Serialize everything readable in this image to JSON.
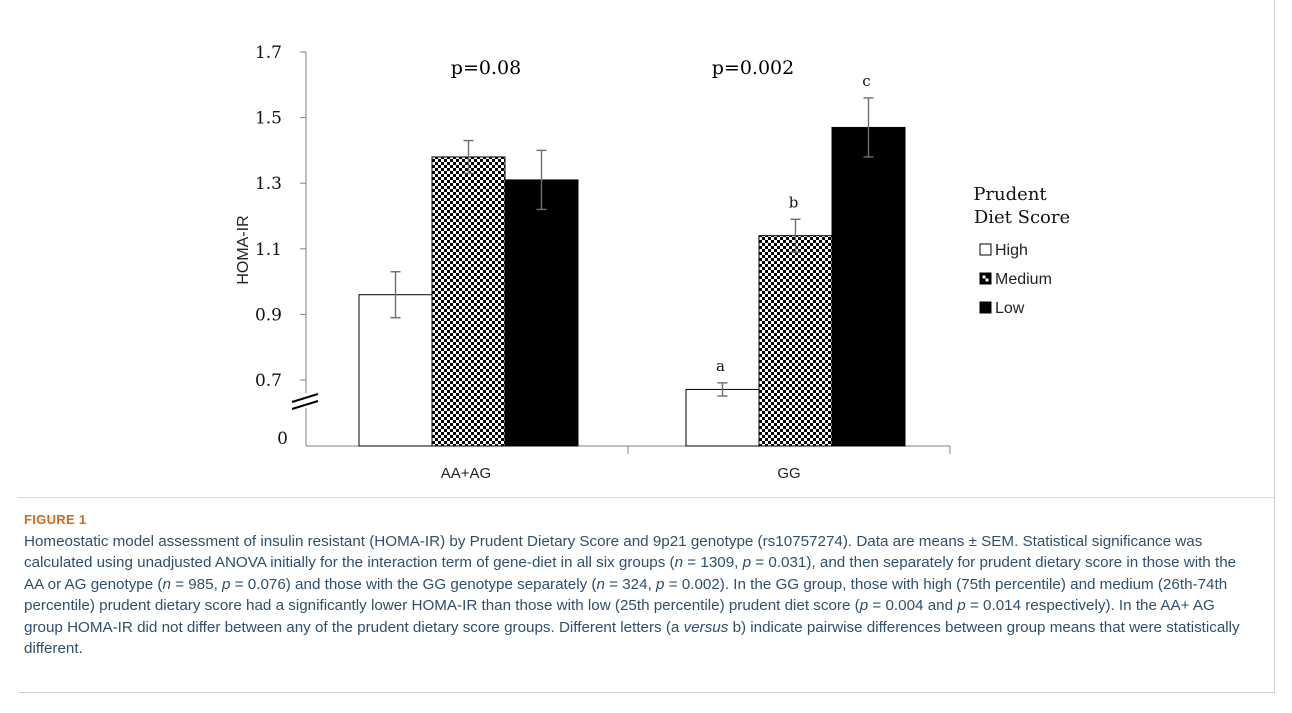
{
  "chart_data": {
    "type": "bar",
    "categories": [
      "AA+AG",
      "GG"
    ],
    "series": [
      {
        "name": "High",
        "values": [
          0.96,
          0.6
        ],
        "errors": [
          0.07,
          0.07
        ],
        "pattern": "white"
      },
      {
        "name": "Medium",
        "values": [
          1.38,
          1.14
        ],
        "errors": [
          0.05,
          0.05
        ],
        "pattern": "checker"
      },
      {
        "name": "Low",
        "values": [
          1.31,
          1.47
        ],
        "errors": [
          0.09,
          0.09
        ],
        "pattern": "black"
      }
    ],
    "ylabel": "HOMA-IR",
    "xlabel": "",
    "y_ticks": [
      "1.7",
      "1.5",
      "1.3",
      "1.1",
      "0.9",
      "0.7",
      "0"
    ],
    "axis_break": true,
    "legend_title": "Prudent\nDiet Score",
    "legend_position": "right",
    "group_annotations": [
      "p=0.08",
      "p=0.002"
    ],
    "bar_letters": [
      [
        "",
        "",
        ""
      ],
      [
        "a",
        "b",
        "c"
      ]
    ],
    "grid": false
  },
  "figure_label": "FIGURE 1",
  "caption_html": "Homeostatic model assessment of insulin resistant (HOMA-IR) by Prudent Dietary Score and 9p21 genotype (rs10757274). Data are means ± SEM. Statistical significance was calculated using unadjusted ANOVA initially for the interaction term of gene-diet in all six groups (<i>n</i> = 1309, <i>p</i> = 0.031), and then separately for prudent dietary score in those with the AA or AG genotype (<i>n</i> = 985, <i>p</i> = 0.076) and those with the GG genotype separately (<i>n</i> = 324, <i>p</i> = 0.002). In the GG group, those with high (75th percentile) and medium (26th-74th percentile) prudent dietary score had a significantly lower HOMA-IR than those with low (25th percentile) prudent diet score (<i>p</i> = 0.004 and <i>p</i> = 0.014 respectively). In the AA+ AG group HOMA-IR did not differ between any of the prudent dietary score groups. Different letters (a <i>versus</i> b) indicate pairwise differences between group means that were statistically different."
}
